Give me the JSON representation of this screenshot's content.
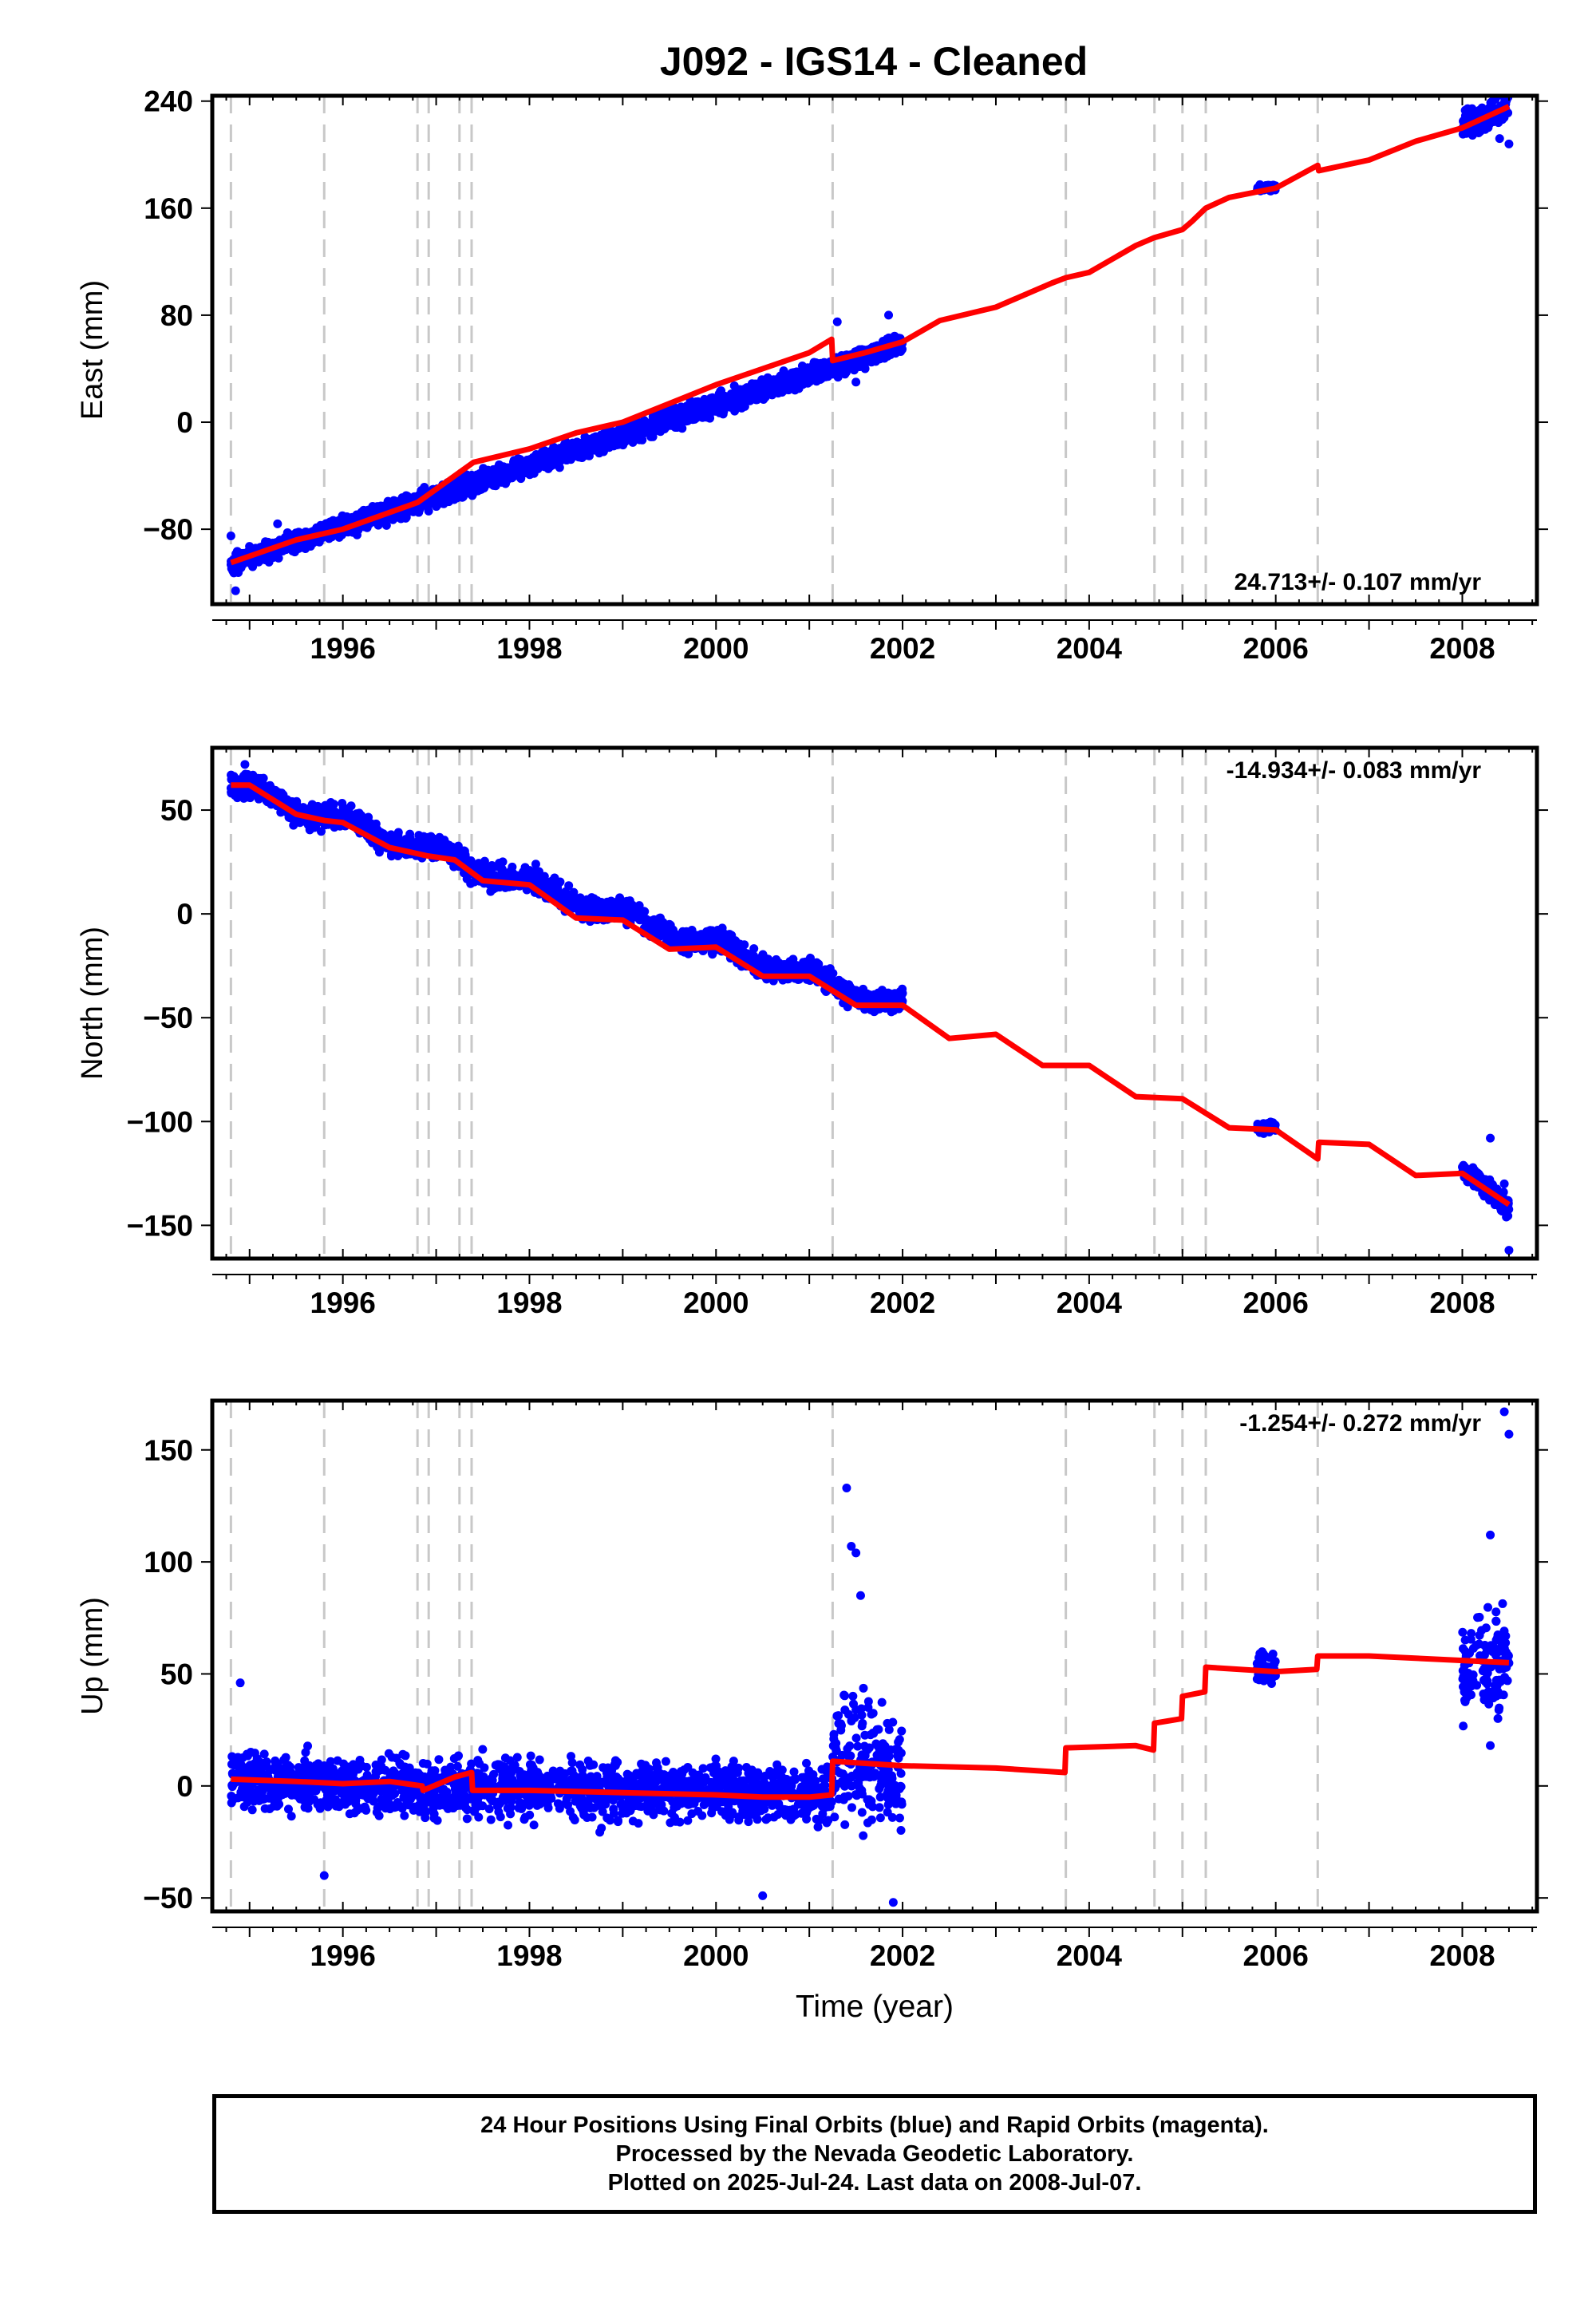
{
  "chart_data": [
    {
      "type": "scatter",
      "panel": "east",
      "title": "J092  - IGS14 - Cleaned",
      "ylabel": "East (mm)",
      "xlabel": "",
      "xlim": [
        1994.6,
        2008.8
      ],
      "ylim": [
        -136,
        244
      ],
      "yticks": [
        -80,
        0,
        80,
        160,
        240
      ],
      "ytick_labels": [
        "−80",
        "0",
        "80",
        "160",
        "240"
      ],
      "xticks": [
        1996,
        1998,
        2000,
        2002,
        2004,
        2006,
        2008
      ],
      "xtick_labels": [
        "1996",
        "1998",
        "2000",
        "2002",
        "2004",
        "2006",
        "2008"
      ],
      "rate_label": "24.713+/- 0.107 mm/yr",
      "legend_position": "bottom-right",
      "series": [
        {
          "name": "Final Orbits (blue)",
          "color": "#0000ff",
          "segments": [
            {
              "x": [
                1994.8,
                2002.0
              ],
              "trend": [
                -106,
                58
              ],
              "noise": 5
            },
            {
              "x": [
                1995.0,
                2002.0
              ],
              "trend": [
                -100,
                60
              ],
              "noise": 4
            },
            {
              "x": [
                2005.8,
                2006.0
              ],
              "trend": [
                174,
                176
              ],
              "noise": 2
            },
            {
              "x": [
                2008.0,
                2008.5
              ],
              "trend": [
                222,
                236
              ],
              "noise": 8
            }
          ],
          "extra_points": [
            {
              "x": 1994.8,
              "y": -85
            },
            {
              "x": 1994.85,
              "y": -126
            },
            {
              "x": 1995.3,
              "y": -76
            },
            {
              "x": 2001.3,
              "y": 75
            },
            {
              "x": 2001.5,
              "y": 30
            },
            {
              "x": 2001.85,
              "y": 80
            },
            {
              "x": 2008.4,
              "y": 212
            },
            {
              "x": 2008.5,
              "y": 208
            }
          ]
        },
        {
          "name": "Model fit",
          "color": "#ff0000",
          "x": [
            1994.8,
            1995.5,
            1996.0,
            1996.8,
            1997.2,
            1997.4,
            1998.0,
            1998.5,
            1999.0,
            1999.5,
            2000.0,
            2000.5,
            2001.0,
            2001.24,
            2001.25,
            2001.6,
            2002.0,
            2002.4,
            2003.0,
            2003.6,
            2003.75,
            2004.0,
            2004.5,
            2004.7,
            2005.0,
            2005.1,
            2005.25,
            2005.5,
            2006.0,
            2006.45,
            2006.46,
            2007.0,
            2007.5,
            2008.0,
            2008.5
          ],
          "y": [
            -105,
            -88,
            -80,
            -60,
            -40,
            -30,
            -20,
            -8,
            0,
            14,
            28,
            40,
            52,
            62,
            46,
            52,
            60,
            76,
            86,
            104,
            108,
            112,
            132,
            138,
            144,
            150,
            160,
            168,
            175,
            192,
            188,
            196,
            210,
            220,
            236
          ]
        }
      ]
    },
    {
      "type": "scatter",
      "panel": "north",
      "title": "",
      "ylabel": "North (mm)",
      "xlabel": "",
      "xlim": [
        1994.6,
        2008.8
      ],
      "ylim": [
        -166,
        80
      ],
      "yticks": [
        -150,
        -100,
        -50,
        0,
        50
      ],
      "ytick_labels": [
        "−150",
        "−100",
        "−50",
        "0",
        "50"
      ],
      "xticks": [
        1996,
        1998,
        2000,
        2002,
        2004,
        2006,
        2008
      ],
      "xtick_labels": [
        "1996",
        "1998",
        "2000",
        "2002",
        "2004",
        "2006",
        "2008"
      ],
      "rate_label": "-14.934+/- 0.083 mm/yr",
      "legend_position": "top-right",
      "series": [
        {
          "name": "Final Orbits (blue)",
          "color": "#0000ff",
          "segments": [
            {
              "x": [
                1994.8,
                2002.0
              ],
              "trend": [
                62,
                -45
              ],
              "noise": 4
            },
            {
              "x": [
                2005.8,
                2006.0
              ],
              "trend": [
                -103,
                -106
              ],
              "noise": 2
            },
            {
              "x": [
                2008.0,
                2008.5
              ],
              "trend": [
                -126,
                -138
              ],
              "noise": 4
            }
          ],
          "extra_points": [
            {
              "x": 1994.95,
              "y": 72
            },
            {
              "x": 2008.3,
              "y": -108
            },
            {
              "x": 2008.5,
              "y": -162
            },
            {
              "x": 2008.45,
              "y": -130
            }
          ]
        },
        {
          "name": "Model fit",
          "color": "#ff0000",
          "x": [
            1994.8,
            1995.0,
            1995.5,
            1995.8,
            1996.0,
            1996.5,
            1996.9,
            1997.2,
            1997.5,
            1998.0,
            1998.5,
            1999.0,
            1999.5,
            2000.0,
            2000.5,
            2001.0,
            2001.5,
            2002.0,
            2002.5,
            2003.0,
            2003.5,
            2004.0,
            2004.5,
            2005.0,
            2005.5,
            2006.0,
            2006.45,
            2006.46,
            2007.0,
            2007.5,
            2008.0,
            2008.5
          ],
          "y": [
            62,
            62,
            48,
            45,
            44,
            32,
            28,
            26,
            16,
            14,
            -2,
            -3,
            -17,
            -16,
            -30,
            -30,
            -44,
            -44,
            -60,
            -58,
            -73,
            -73,
            -88,
            -89,
            -103,
            -104,
            -118,
            -110,
            -111,
            -126,
            -125,
            -140
          ]
        }
      ]
    },
    {
      "type": "scatter",
      "panel": "up",
      "title": "",
      "ylabel": "Up (mm)",
      "xlabel": "Time (year)",
      "xlim": [
        1994.6,
        2008.8
      ],
      "ylim": [
        -56,
        172
      ],
      "yticks": [
        -50,
        0,
        50,
        100,
        150
      ],
      "ytick_labels": [
        "−50",
        "0",
        "50",
        "100",
        "150"
      ],
      "xticks": [
        1996,
        1998,
        2000,
        2002,
        2004,
        2006,
        2008
      ],
      "xtick_labels": [
        "1996",
        "1998",
        "2000",
        "2002",
        "2004",
        "2006",
        "2008"
      ],
      "rate_label": "-1.254+/- 0.272 mm/yr",
      "legend_position": "top-right",
      "series": [
        {
          "name": "Final Orbits (blue)",
          "color": "#0000ff",
          "segments": [
            {
              "x": [
                1994.8,
                2001.25
              ],
              "trend": [
                2,
                -4
              ],
              "noise": 9
            },
            {
              "x": [
                2001.25,
                2002.0
              ],
              "trend": [
                15,
                5
              ],
              "noise": 20
            },
            {
              "x": [
                2005.8,
                2006.0
              ],
              "trend": [
                52,
                52
              ],
              "noise": 5
            },
            {
              "x": [
                2008.0,
                2008.5
              ],
              "trend": [
                55,
                55
              ],
              "noise": 15
            }
          ],
          "extra_points": [
            {
              "x": 2001.4,
              "y": 133
            },
            {
              "x": 2001.45,
              "y": 107
            },
            {
              "x": 2001.5,
              "y": 104
            },
            {
              "x": 2001.55,
              "y": 85
            },
            {
              "x": 2001.9,
              "y": -52
            },
            {
              "x": 2000.5,
              "y": -49
            },
            {
              "x": 1995.8,
              "y": -40
            },
            {
              "x": 1994.9,
              "y": 46
            },
            {
              "x": 2008.45,
              "y": 167
            },
            {
              "x": 2008.5,
              "y": 157
            },
            {
              "x": 2008.3,
              "y": 112
            },
            {
              "x": 2008.3,
              "y": 18
            }
          ]
        },
        {
          "name": "Model fit",
          "color": "#ff0000",
          "x": [
            1994.8,
            1995.5,
            1996.0,
            1996.5,
            1996.85,
            1996.86,
            1997.2,
            1997.38,
            1997.39,
            1998.0,
            1999.0,
            2000.0,
            2000.5,
            2001.0,
            2001.24,
            2001.25,
            2002.0,
            2003.0,
            2003.74,
            2003.75,
            2004.5,
            2004.69,
            2004.7,
            2004.99,
            2005.0,
            2005.24,
            2005.25,
            2006.0,
            2006.44,
            2006.45,
            2007.0,
            2008.0,
            2008.5
          ],
          "y": [
            3,
            2,
            1,
            2,
            0,
            -2,
            4,
            6,
            -2,
            -2,
            -3,
            -4,
            -5,
            -5,
            -4,
            11,
            9,
            8,
            6,
            17,
            18,
            16,
            28,
            30,
            40,
            42,
            53,
            51,
            52,
            58,
            58,
            56,
            55
          ]
        }
      ]
    }
  ],
  "footer": {
    "line1": "24 Hour Positions Using Final Orbits (blue) and Rapid Orbits (magenta).",
    "line2": "Processed by the Nevada Geodetic Laboratory.",
    "line3": "Plotted on 2025-Jul-24. Last data on 2008-Jul-07."
  },
  "colors": {
    "data": "#0000ff",
    "model": "#ff0000",
    "breaks": "#c8c8c8"
  },
  "breaks": [
    1994.8,
    1995.8,
    1996.8,
    1996.92,
    1997.25,
    1997.38,
    2001.25,
    2003.75,
    2004.7,
    2005.0,
    2005.25,
    2006.45
  ]
}
